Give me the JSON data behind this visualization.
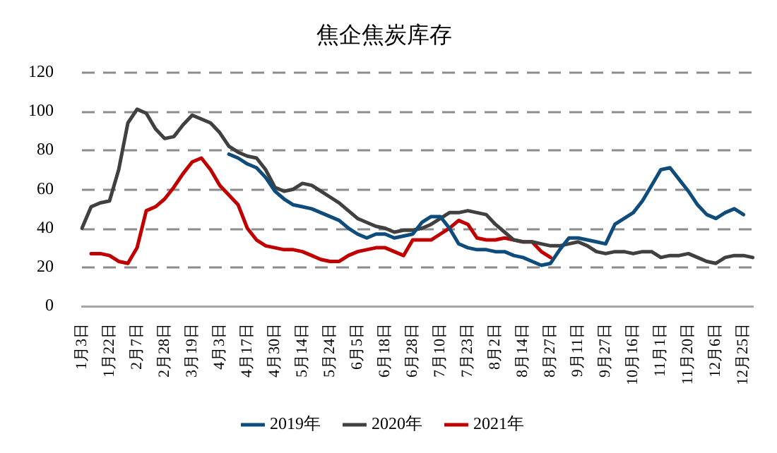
{
  "chart_data": {
    "type": "line",
    "title": "焦企焦炭库存",
    "categories": [
      "1月3日",
      null,
      null,
      "1月22日",
      null,
      null,
      "2月7日",
      null,
      null,
      "2月28日",
      null,
      null,
      "3月19日",
      null,
      null,
      "4月3日",
      null,
      null,
      "4月17日",
      null,
      null,
      "4月30日",
      null,
      null,
      "5月14日",
      null,
      null,
      "5月24日",
      null,
      null,
      "6月5日",
      null,
      null,
      "6月18日",
      null,
      null,
      "6月28日",
      null,
      null,
      "7月10日",
      null,
      null,
      "7月23日",
      null,
      null,
      "8月2日",
      null,
      null,
      "8月14日",
      null,
      null,
      "8月27日",
      null,
      null,
      "9月11日",
      null,
      null,
      "9月27日",
      null,
      null,
      "10月16日",
      null,
      null,
      "11月1日",
      null,
      null,
      "11月20日",
      null,
      null,
      "12月6日",
      null,
      null,
      "12月25日",
      null
    ],
    "series": [
      {
        "name": "2019年",
        "color": "#0e4c7c",
        "values": [
          null,
          null,
          null,
          null,
          null,
          null,
          null,
          null,
          null,
          null,
          null,
          null,
          null,
          null,
          null,
          null,
          78,
          76,
          73,
          71,
          66,
          59,
          55,
          52,
          51,
          50,
          48,
          46,
          44,
          40,
          37,
          35,
          37,
          37,
          35,
          36,
          37,
          43,
          46,
          46,
          40,
          32,
          30,
          29,
          29,
          28,
          28,
          26,
          25,
          23,
          21,
          22,
          29,
          35,
          35,
          34,
          33,
          32,
          42,
          45,
          48,
          54,
          62,
          70,
          71,
          65,
          59,
          52,
          47,
          45,
          48,
          50,
          47,
          null
        ]
      },
      {
        "name": "2020年",
        "color": "#404040",
        "values": [
          40,
          51,
          53,
          54,
          70,
          94,
          101,
          99,
          91,
          86,
          87,
          93,
          98,
          96,
          94,
          89,
          82,
          79,
          77,
          76,
          70,
          61,
          59,
          60,
          63,
          62,
          59,
          56,
          53,
          49,
          45,
          43,
          41,
          40,
          38,
          39,
          39,
          40,
          42,
          45,
          48,
          48,
          49,
          48,
          47,
          42,
          38,
          34,
          33,
          33,
          32,
          31,
          31,
          32,
          33,
          31,
          28,
          27,
          28,
          28,
          27,
          28,
          28,
          25,
          26,
          26,
          27,
          25,
          23,
          22,
          25,
          26,
          26,
          25
        ]
      },
      {
        "name": "2021年",
        "color": "#c00000",
        "values": [
          null,
          27,
          27,
          26,
          23,
          22,
          30,
          49,
          51,
          55,
          61,
          68,
          74,
          76,
          70,
          62,
          57,
          52,
          40,
          34,
          31,
          30,
          29,
          29,
          28,
          26,
          24,
          23,
          23,
          26,
          28,
          29,
          30,
          30,
          28,
          26,
          34,
          34,
          34,
          37,
          40,
          44,
          42,
          35,
          34,
          34,
          35,
          34,
          33,
          33,
          28,
          25,
          null,
          null,
          null,
          null,
          null,
          null,
          null,
          null,
          null,
          null,
          null,
          null,
          null,
          null,
          null,
          null,
          null,
          null,
          null,
          null,
          null,
          null
        ]
      }
    ],
    "ylim": [
      0,
      120
    ],
    "yticks": [
      0,
      20,
      40,
      60,
      80,
      100,
      120
    ],
    "grid": "y",
    "line_style": "solid",
    "marker": "none",
    "legend": "bottom"
  }
}
